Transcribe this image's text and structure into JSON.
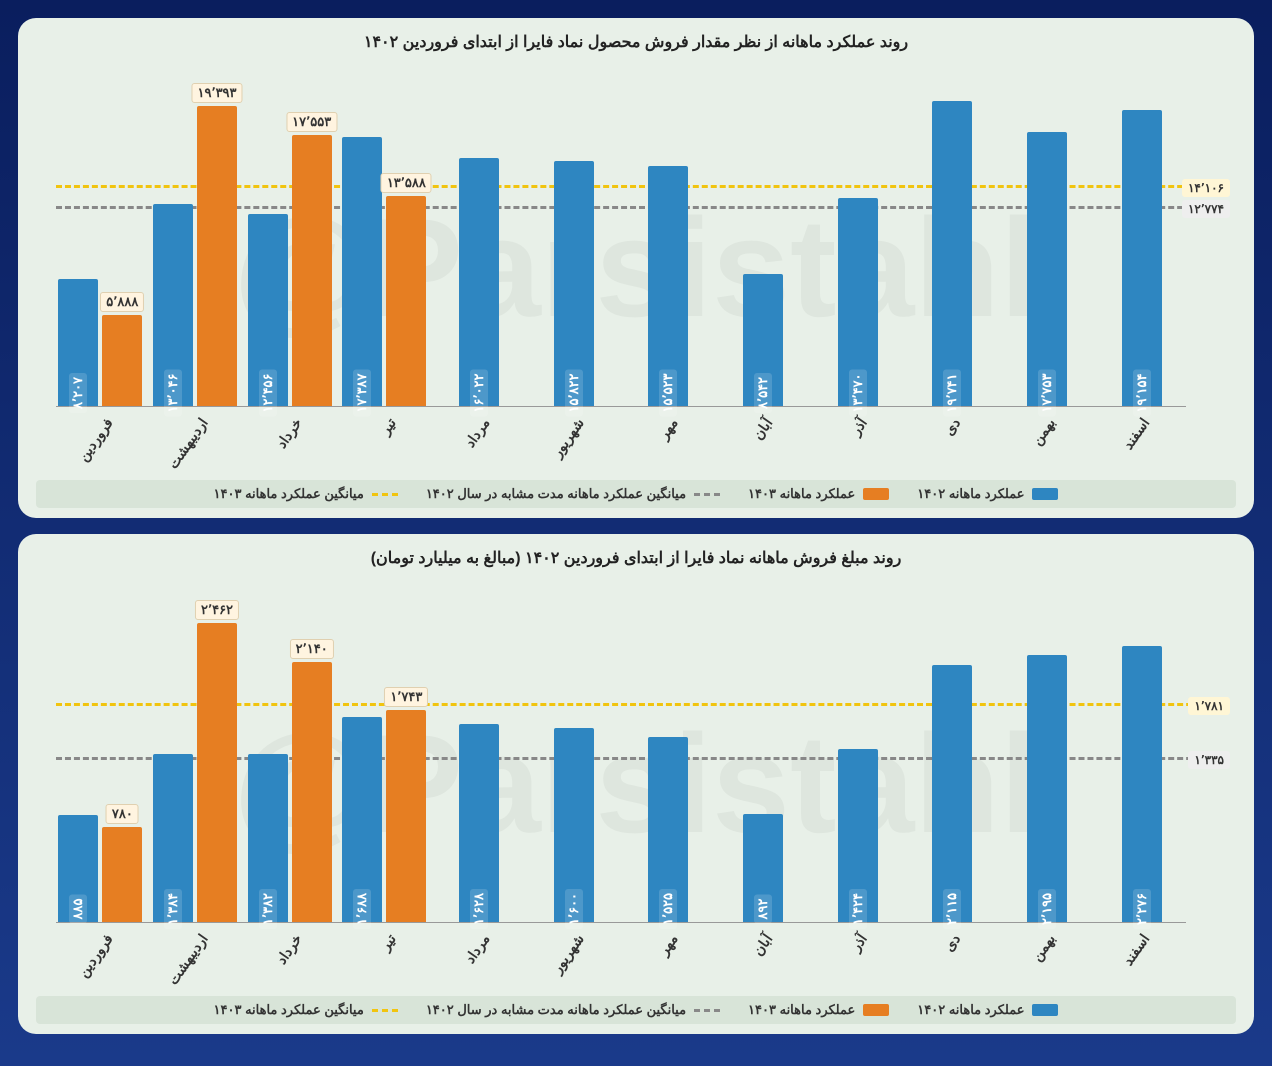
{
  "watermark": "@Parsistahl",
  "colors": {
    "series_1402": "#2e86c1",
    "series_1403": "#e67e22",
    "avg_1402": "#888888",
    "avg_1403": "#f1c40f",
    "panel_bg": "#e8f0e8",
    "label_top_bg": "#fff4e0",
    "avg_label_1402_bg": "#eeeeee",
    "avg_label_1403_bg": "#fff6d5"
  },
  "months": [
    "فروردین",
    "اردیبهشت",
    "خرداد",
    "تیر",
    "مرداد",
    "شهریور",
    "مهر",
    "آبان",
    "آذر",
    "دی",
    "بهمن",
    "اسفند"
  ],
  "legend": {
    "s1402": "عملکرد ماهانه ۱۴۰۲",
    "s1403": "عملکرد ماهانه ۱۴۰۳",
    "avg1402": "میانگین عملکرد ماهانه مدت مشابه در سال ۱۴۰۲",
    "avg1403": "میانگین عملکرد ماهانه ۱۴۰۳"
  },
  "chart_top": {
    "title": "روند عملکرد ماهانه از نظر مقدار فروش محصول نماد فایرا از ابتدای فروردین ۱۴۰۲",
    "type": "grouped-bar",
    "ylim": [
      0,
      22000
    ],
    "series_1402": {
      "values": [
        8207,
        13046,
        12456,
        17387,
        16022,
        15822,
        15523,
        8542,
        13470,
        19741,
        17753,
        19154
      ],
      "labels": [
        "۸٬۲۰۷",
        "۱۳٬۰۴۶",
        "۱۲٬۴۵۶",
        "۱۷٬۳۸۷",
        "۱۶٬۰۲۲",
        "۱۵٬۸۲۲",
        "۱۵٬۵۲۳",
        "۸٬۵۴۲",
        "۱۳٬۴۷۰",
        "۱۹٬۷۴۱",
        "۱۷٬۷۵۳",
        "۱۹٬۱۵۴"
      ]
    },
    "series_1403": {
      "values": [
        5888,
        19393,
        17553,
        13588,
        null,
        null,
        null,
        null,
        null,
        null,
        null,
        null
      ],
      "labels": [
        "۵٬۸۸۸",
        "۱۹٬۳۹۳",
        "۱۷٬۵۵۳",
        "۱۳٬۵۸۸",
        "",
        "",
        "",
        "",
        "",
        "",
        "",
        ""
      ]
    },
    "avg_1402": {
      "value": 12774,
      "label": "۱۲٬۷۷۴"
    },
    "avg_1403": {
      "value": 14106,
      "label": "۱۴٬۱۰۶"
    }
  },
  "chart_bottom": {
    "title": "روند مبلغ فروش ماهانه نماد فایرا از ابتدای فروردین ۱۴۰۲ (مبالغ به میلیارد تومان)",
    "type": "grouped-bar",
    "ylim": [
      0,
      2800
    ],
    "series_1402": {
      "values": [
        885,
        1384,
        1382,
        1688,
        1628,
        1600,
        1525,
        892,
        1424,
        2115,
        2195,
        2276
      ],
      "labels": [
        "۸۸۵",
        "۱٬۳۸۴",
        "۱٬۳۸۲",
        "۱٬۶۸۸",
        "۱٬۶۲۸",
        "۱٬۶۰۰",
        "۱٬۵۲۵",
        "۸۹۲",
        "۱٬۴۲۴",
        "۲٬۱۱۵",
        "۲٬۱۹۵",
        "۲٬۲۷۶"
      ]
    },
    "series_1403": {
      "values": [
        780,
        2462,
        2140,
        1743,
        null,
        null,
        null,
        null,
        null,
        null,
        null,
        null
      ],
      "labels": [
        "۷۸۰",
        "۲٬۴۶۲",
        "۲٬۱۴۰",
        "۱٬۷۴۳",
        "",
        "",
        "",
        "",
        "",
        "",
        "",
        ""
      ]
    },
    "avg_1402": {
      "value": 1335,
      "label": "۱٬۳۳۵"
    },
    "avg_1403": {
      "value": 1781,
      "label": "۱٬۷۸۱"
    }
  }
}
